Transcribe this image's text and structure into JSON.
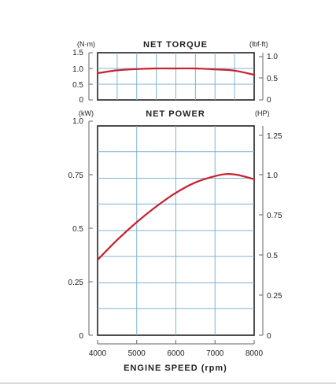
{
  "chart_data": [
    {
      "type": "line",
      "title": "NET TORQUE",
      "left_unit": "(N·m)",
      "right_unit": "(lbf·ft)",
      "xlim": [
        4000,
        8000
      ],
      "ylim": [
        0,
        1.5
      ],
      "right_ylim_lbf_ft": [
        0,
        1.106
      ],
      "y_ticks": [
        "0",
        "0.5",
        "1.0",
        "1.5"
      ],
      "right_ticks": [
        "0",
        "0.5",
        "1.0"
      ],
      "grid": true,
      "series": [
        {
          "color": "#c8202e",
          "x": [
            4000,
            4500,
            5000,
            5500,
            6000,
            6500,
            7000,
            7500,
            8000
          ],
          "y": [
            0.85,
            0.94,
            0.98,
            1.0,
            1.0,
            1.0,
            0.97,
            0.93,
            0.8
          ]
        }
      ]
    },
    {
      "type": "line",
      "title": "NET POWER",
      "left_unit": "(kW)",
      "right_unit": "(HP)",
      "xlim": [
        4000,
        8000
      ],
      "ylim": [
        0,
        1.0
      ],
      "right_ylim_hp": [
        0,
        1.341
      ],
      "y_ticks": [
        "0",
        "0.25",
        "0.5",
        "0.75",
        "1.0"
      ],
      "right_ticks": [
        "0",
        "0.25",
        "0.5",
        "0.75",
        "1.0",
        "1.25"
      ],
      "x_ticks": [
        "4000",
        "5000",
        "6000",
        "7000",
        "8000"
      ],
      "xlabel": "ENGINE SPEED (rpm)",
      "grid": true,
      "series": [
        {
          "color": "#c8202e",
          "x": [
            4000,
            4500,
            5000,
            5500,
            6000,
            6500,
            7000,
            7300,
            7600,
            8000
          ],
          "y": [
            0.36,
            0.455,
            0.54,
            0.615,
            0.68,
            0.73,
            0.76,
            0.77,
            0.765,
            0.745
          ]
        }
      ]
    }
  ]
}
